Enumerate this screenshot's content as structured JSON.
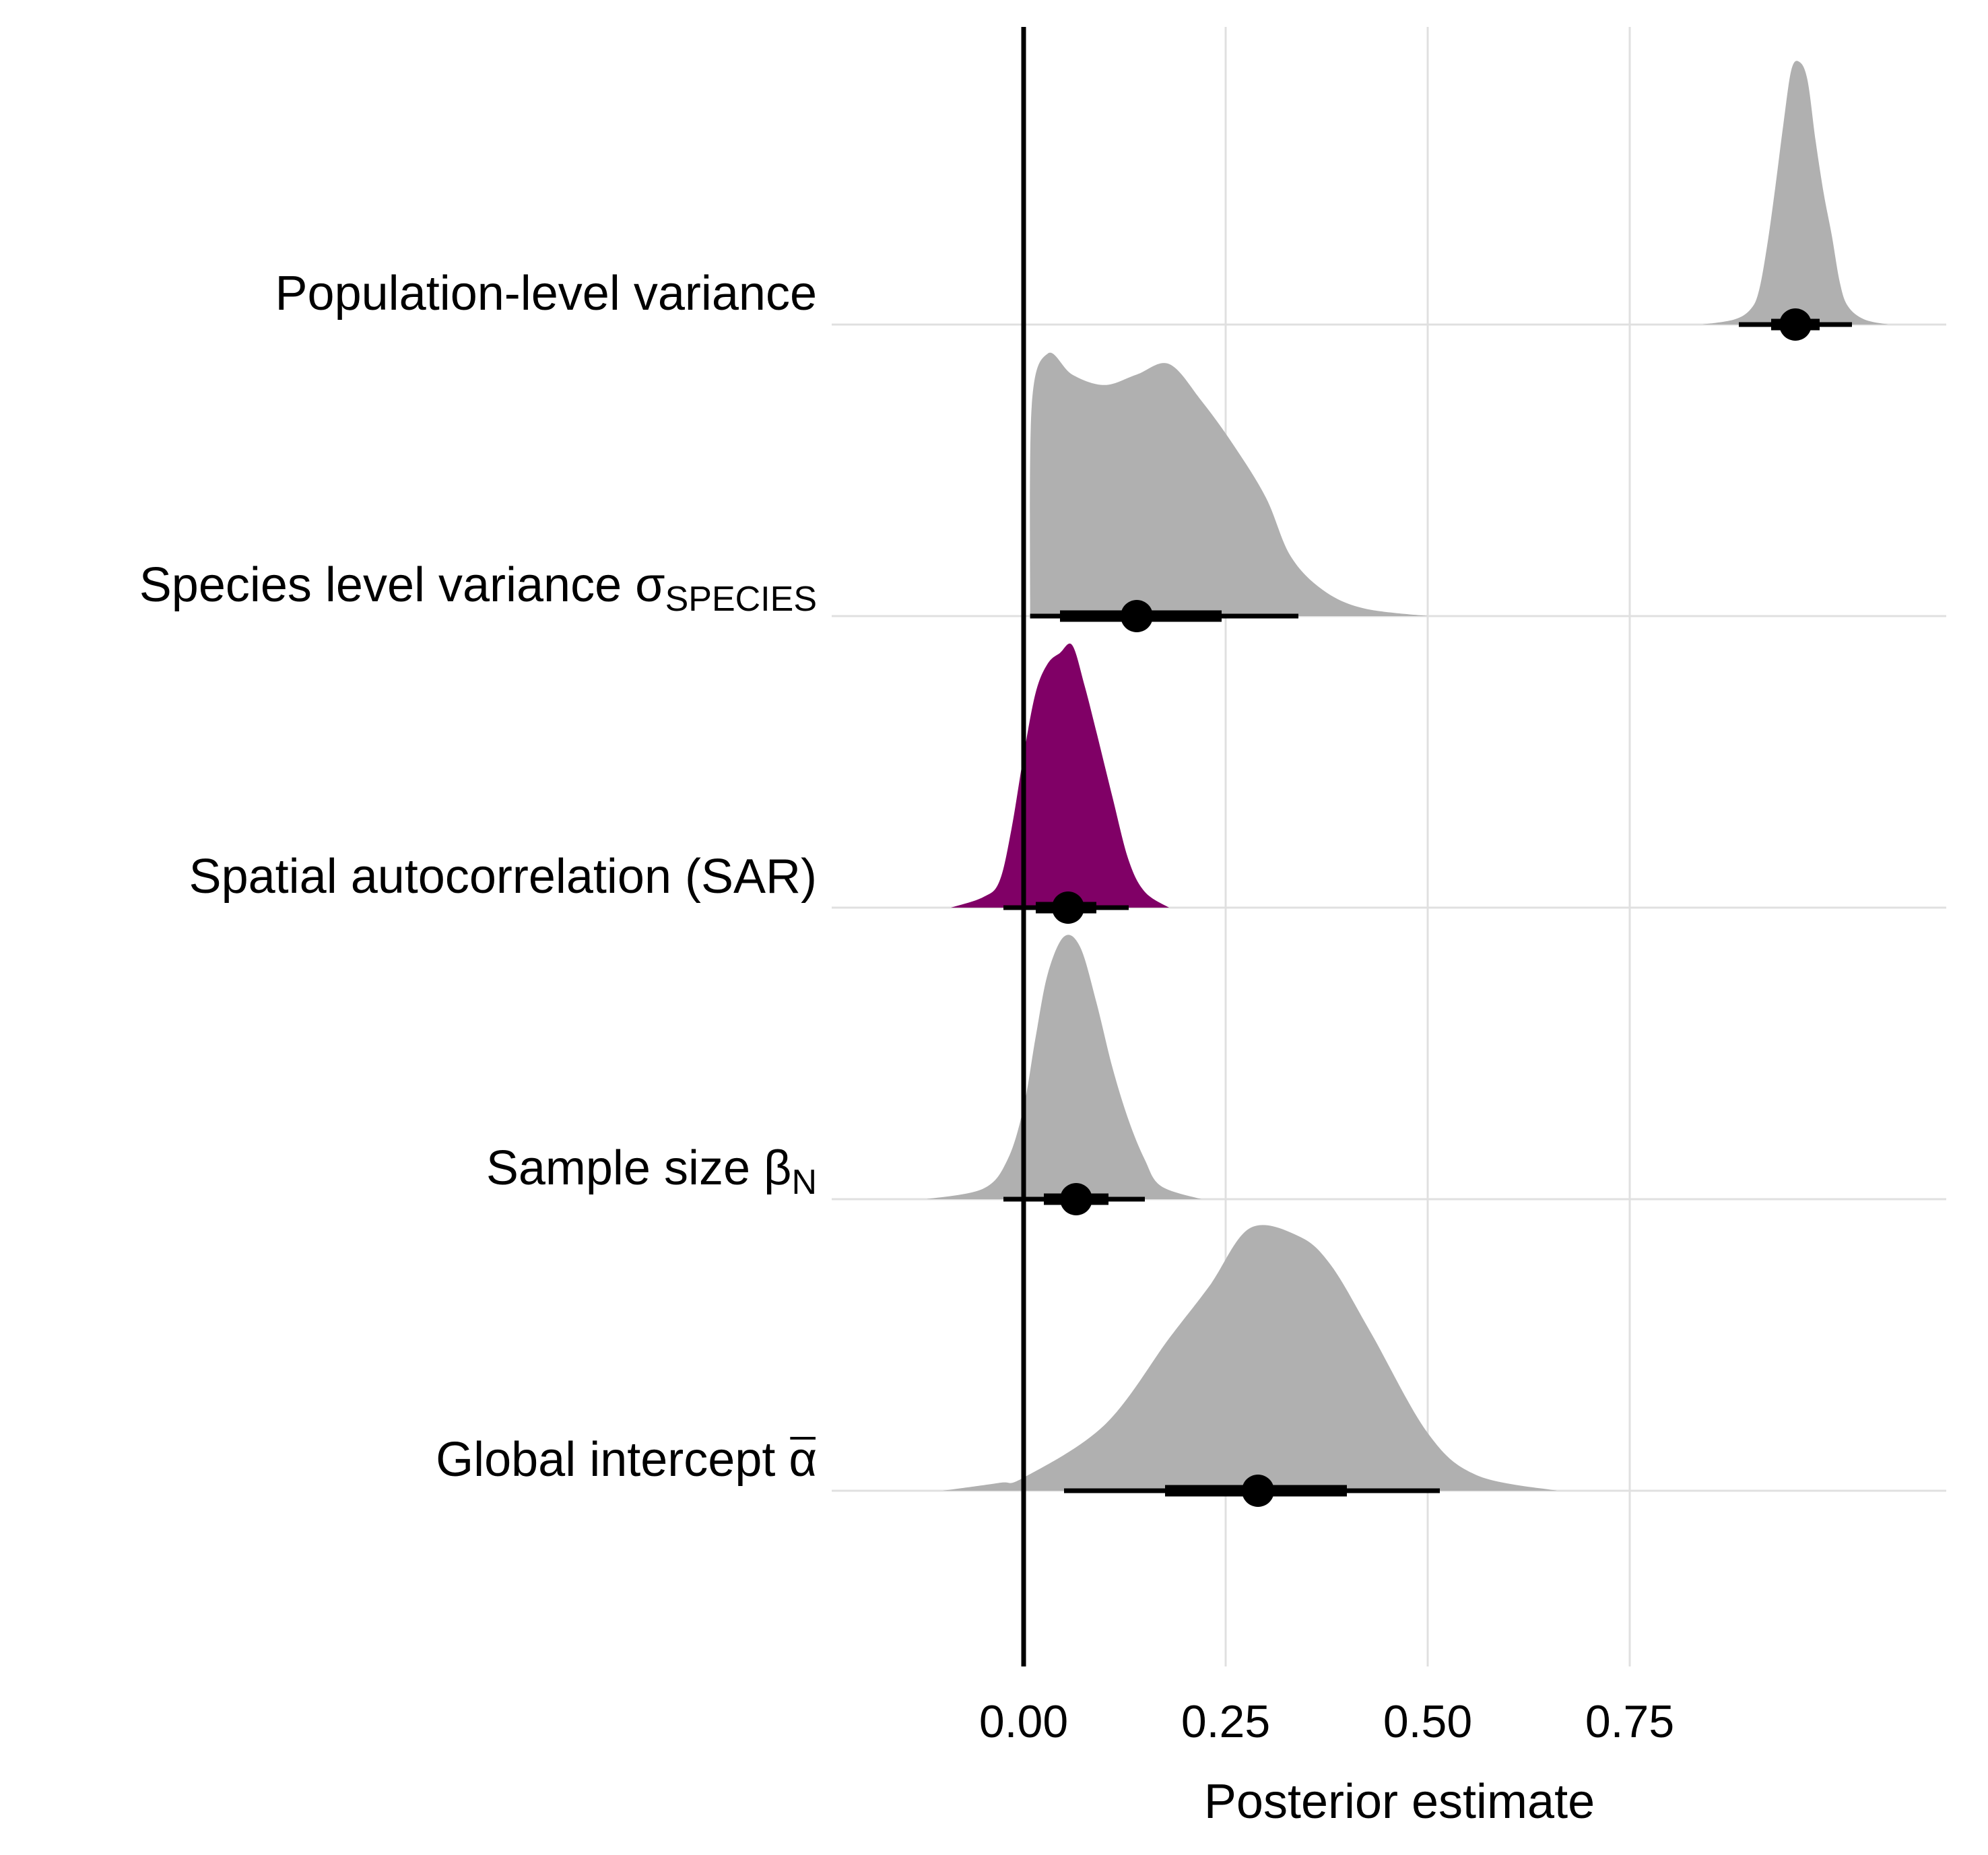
{
  "chart_data": {
    "type": "ridgeline-density-interval",
    "xlabel": "Posterior estimate",
    "xlim": [
      -0.23,
      1.15
    ],
    "x_ticks": [
      {
        "value": 0.0,
        "label": "0.00"
      },
      {
        "value": 0.25,
        "label": "0.25"
      },
      {
        "value": 0.5,
        "label": "0.50"
      },
      {
        "value": 0.75,
        "label": "0.75"
      }
    ],
    "zero_line": 0.0,
    "grid": "vertical and horizontal light gray",
    "colors": {
      "default_fill": "#b0b0b0",
      "highlight_fill": "#800066",
      "interval": "#000000",
      "grid": "#e0e0e0",
      "zero_line": "#000000"
    },
    "series": [
      {
        "name": "Population-level variance",
        "label_main": "Population-level variance",
        "label_sub": "",
        "highlight": false,
        "median": 0.955,
        "interval_66": [
          0.925,
          0.985
        ],
        "interval_95": [
          0.885,
          1.025
        ],
        "density": [
          [
            0.84,
            0.0
          ],
          [
            0.88,
            0.02
          ],
          [
            0.9,
            0.06
          ],
          [
            0.91,
            0.13
          ],
          [
            0.92,
            0.3
          ],
          [
            0.93,
            0.52
          ],
          [
            0.94,
            0.76
          ],
          [
            0.95,
            0.97
          ],
          [
            0.96,
            1.0
          ],
          [
            0.97,
            0.93
          ],
          [
            0.98,
            0.7
          ],
          [
            0.99,
            0.5
          ],
          [
            1.0,
            0.34
          ],
          [
            1.01,
            0.16
          ],
          [
            1.02,
            0.07
          ],
          [
            1.04,
            0.02
          ],
          [
            1.07,
            0.0
          ]
        ]
      },
      {
        "name": "Species level variance σSPECIES",
        "label_main": "Species level variance σ",
        "label_sub": "SPECIES",
        "highlight": false,
        "median": 0.14,
        "interval_66": [
          0.045,
          0.245
        ],
        "interval_95": [
          0.008,
          0.34
        ],
        "density": [
          [
            0.008,
            0.0
          ],
          [
            0.01,
            0.8
          ],
          [
            0.03,
            1.0
          ],
          [
            0.06,
            0.92
          ],
          [
            0.1,
            0.88
          ],
          [
            0.14,
            0.92
          ],
          [
            0.18,
            0.96
          ],
          [
            0.22,
            0.82
          ],
          [
            0.26,
            0.65
          ],
          [
            0.3,
            0.45
          ],
          [
            0.33,
            0.23
          ],
          [
            0.37,
            0.1
          ],
          [
            0.42,
            0.03
          ],
          [
            0.5,
            0.0
          ]
        ]
      },
      {
        "name": "Spatial autocorrelation (SAR)",
        "label_main": "Spatial autocorrelation (SAR)",
        "label_sub": "",
        "highlight": true,
        "median": 0.055,
        "interval_66": [
          0.015,
          0.09
        ],
        "interval_95": [
          -0.025,
          0.13
        ],
        "density": [
          [
            -0.09,
            0.0
          ],
          [
            -0.05,
            0.04
          ],
          [
            -0.03,
            0.1
          ],
          [
            -0.015,
            0.3
          ],
          [
            0.0,
            0.58
          ],
          [
            0.015,
            0.82
          ],
          [
            0.03,
            0.93
          ],
          [
            0.045,
            0.97
          ],
          [
            0.06,
            1.0
          ],
          [
            0.075,
            0.85
          ],
          [
            0.09,
            0.67
          ],
          [
            0.11,
            0.42
          ],
          [
            0.13,
            0.18
          ],
          [
            0.15,
            0.06
          ],
          [
            0.18,
            0.0
          ]
        ]
      },
      {
        "name": "Sample size βN",
        "label_main": "Sample size β",
        "label_sub": "N",
        "highlight": false,
        "median": 0.065,
        "interval_66": [
          0.025,
          0.105
        ],
        "interval_95": [
          -0.025,
          0.15
        ],
        "density": [
          [
            -0.12,
            0.0
          ],
          [
            -0.05,
            0.04
          ],
          [
            -0.02,
            0.15
          ],
          [
            0.0,
            0.35
          ],
          [
            0.015,
            0.62
          ],
          [
            0.03,
            0.86
          ],
          [
            0.05,
            1.0
          ],
          [
            0.07,
            0.96
          ],
          [
            0.09,
            0.75
          ],
          [
            0.11,
            0.5
          ],
          [
            0.13,
            0.3
          ],
          [
            0.15,
            0.15
          ],
          [
            0.17,
            0.05
          ],
          [
            0.22,
            0.0
          ]
        ]
      },
      {
        "name": "Global intercept α",
        "label_main": "Global intercept α",
        "label_sub": "",
        "overline_last": true,
        "highlight": false,
        "median": 0.29,
        "interval_66": [
          0.175,
          0.4
        ],
        "interval_95": [
          0.05,
          0.515
        ],
        "density": [
          [
            -0.1,
            0.0
          ],
          [
            -0.03,
            0.03
          ],
          [
            0.0,
            0.05
          ],
          [
            0.1,
            0.25
          ],
          [
            0.18,
            0.58
          ],
          [
            0.23,
            0.78
          ],
          [
            0.28,
            1.0
          ],
          [
            0.34,
            0.97
          ],
          [
            0.38,
            0.86
          ],
          [
            0.43,
            0.6
          ],
          [
            0.5,
            0.22
          ],
          [
            0.56,
            0.06
          ],
          [
            0.66,
            0.0
          ]
        ]
      }
    ]
  }
}
